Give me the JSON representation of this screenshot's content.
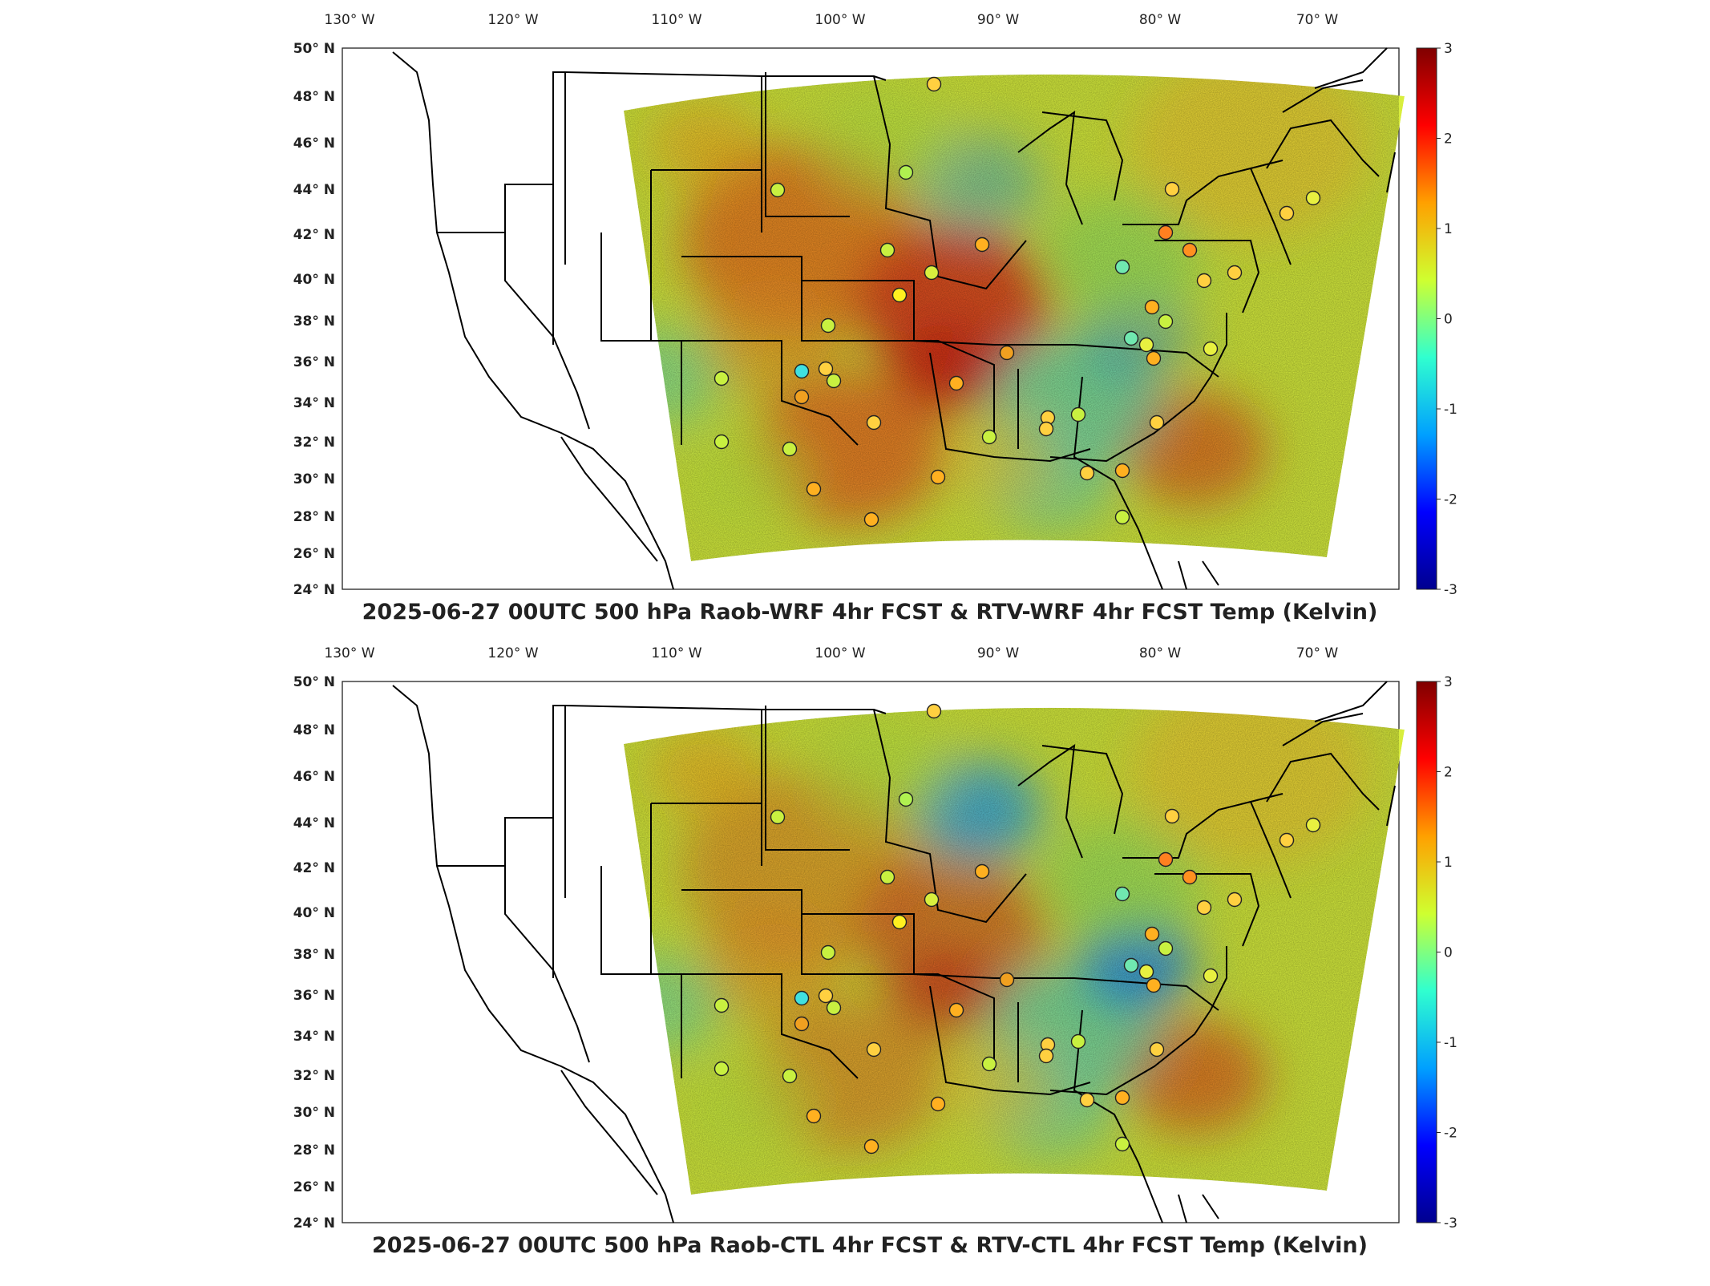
{
  "lon_ticks": [
    "130° W",
    "120° W",
    "110° W",
    "100° W",
    "90° W",
    "80° W",
    "70° W"
  ],
  "lat_ticks": [
    "50° N",
    "48° N",
    "46° N",
    "44° N",
    "42° N",
    "40° N",
    "38° N",
    "36° N",
    "34° N",
    "32° N",
    "30° N",
    "28° N",
    "26° N",
    "24° N"
  ],
  "colorbar": {
    "ticks": [
      "3",
      "2",
      "1",
      "0",
      "-1",
      "-2",
      "-3"
    ],
    "min": -3,
    "max": 3,
    "colors": [
      "#00008f",
      "#0000ff",
      "#00a0ff",
      "#30ffcf",
      "#cfff30",
      "#ffa000",
      "#ff0000",
      "#800000"
    ]
  },
  "panels": [
    {
      "id": "wrf",
      "title": "2025-06-27 00UTC 500 hPa Raob-WRF 4hr FCST & RTV-WRF 4hr FCST Temp (Kelvin)"
    },
    {
      "id": "ctl",
      "title": "2025-06-27 00UTC 500 hPa Raob-CTL 4hr FCST & RTV-CTL 4hr FCST Temp (Kelvin)"
    }
  ]
}
